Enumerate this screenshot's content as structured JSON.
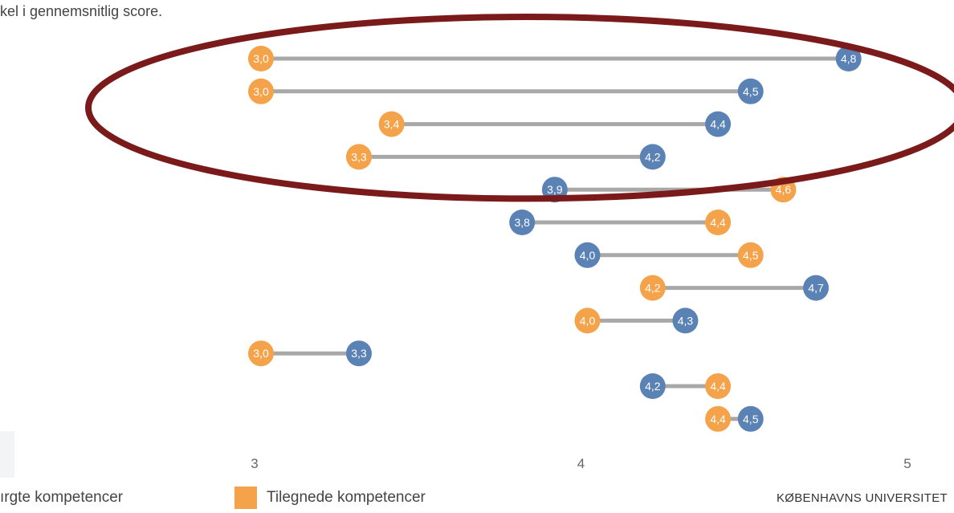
{
  "subtitle": "kel i gennemsnitlig score.",
  "footer": "KØBENHAVNS UNIVERSITET",
  "colors": {
    "acquired": "#f4a34a",
    "requested": "#5b82b5",
    "connector": "#a8a8a8",
    "highlight": "#7a1a1a"
  },
  "legend": [
    {
      "label": "ırgte kompetencer",
      "color": "#5b82b5"
    },
    {
      "label": "Tilegnede kompetencer",
      "color": "#f4a34a"
    }
  ],
  "chart_data": {
    "type": "dumbbell",
    "xlim": [
      3,
      5
    ],
    "xticks": [
      "3",
      "4",
      "5"
    ],
    "series": [
      {
        "name": "Tilegnede kompetencer",
        "values": [
          3.0,
          3.0,
          3.4,
          3.3,
          4.6,
          4.4,
          4.5,
          4.2,
          4.0,
          3.0,
          4.4,
          4.4
        ]
      },
      {
        "values": [
          4.8,
          4.5,
          4.4,
          4.2,
          3.9,
          3.8,
          4.0,
          4.7,
          4.3,
          3.3,
          4.2,
          4.5
        ]
      }
    ],
    "rows": [
      {
        "orange": 3.0,
        "orange_label": "3,0",
        "blue": 4.8,
        "blue_label": "4,8"
      },
      {
        "orange": 3.0,
        "orange_label": "3,0",
        "blue": 4.5,
        "blue_label": "4,5"
      },
      {
        "orange": 3.4,
        "orange_label": "3,4",
        "blue": 4.4,
        "blue_label": "4,4"
      },
      {
        "orange": 3.3,
        "orange_label": "3,3",
        "blue": 4.2,
        "blue_label": "4,2"
      },
      {
        "orange": 4.6,
        "orange_label": "4,6",
        "blue": 3.9,
        "blue_label": "3,9"
      },
      {
        "orange": 4.4,
        "orange_label": "4,4",
        "blue": 3.8,
        "blue_label": "3,8"
      },
      {
        "orange": 4.5,
        "orange_label": "4,5",
        "blue": 4.0,
        "blue_label": "4,0"
      },
      {
        "orange": 4.2,
        "orange_label": "4,2",
        "blue": 4.7,
        "blue_label": "4,7"
      },
      {
        "orange": 4.0,
        "orange_label": "4,0",
        "blue": 4.3,
        "blue_label": "4,3"
      },
      {
        "orange": 3.0,
        "orange_label": "3,0",
        "blue": 3.3,
        "blue_label": "3,3"
      },
      {
        "orange": 4.4,
        "orange_label": "4,4",
        "blue": 4.2,
        "blue_label": "4,2"
      },
      {
        "orange": 4.4,
        "orange_label": "4,4",
        "blue": 4.5,
        "blue_label": "4,5"
      }
    ],
    "highlighted_rows": [
      0,
      1,
      2,
      3
    ]
  }
}
